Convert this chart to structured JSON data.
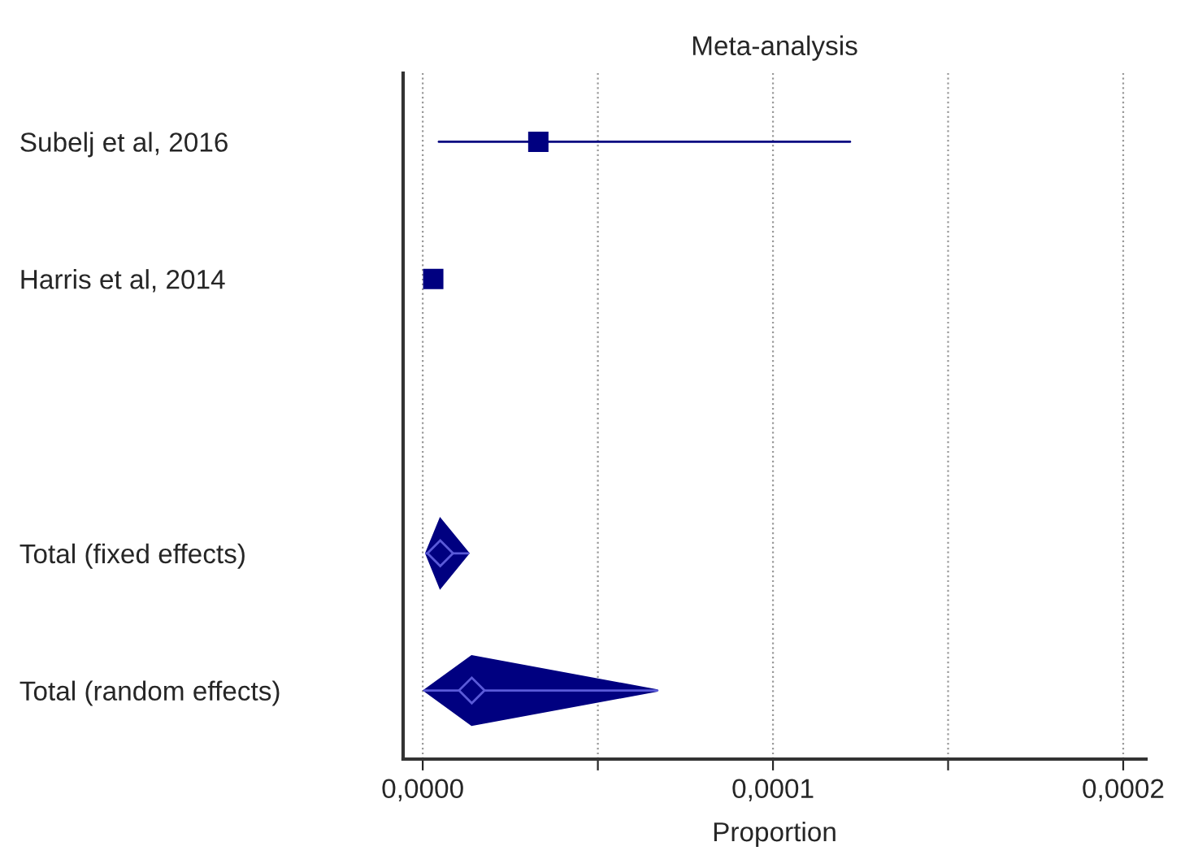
{
  "chart_data": {
    "type": "scatter",
    "orientation": "horizontal",
    "title": "Meta-analysis",
    "xlabel": "Proportion",
    "categories": [
      "Subelj et al, 2016",
      "Harris et al, 2014",
      null,
      "Total (fixed effects)",
      "Total (random effects)"
    ],
    "series": [
      {
        "marker": "square",
        "color": "#000080",
        "values": [
          3.3e-05,
          3e-06,
          null,
          null,
          null
        ],
        "errors": [
          [
            4.6e-06,
            0.000122
          ],
          null,
          null,
          null,
          null
        ]
      },
      {
        "marker": "diamond",
        "color": "#000080",
        "values": [
          null,
          null,
          null,
          5e-06,
          1.4e-05
        ],
        "errors": [
          null,
          null,
          null,
          [
            1e-06,
            1.3e-05
          ],
          [
            5e-07,
            6.7e-05
          ]
        ]
      }
    ],
    "xlim": [
      -5.6e-06,
      0.0002065
    ],
    "xticks": [
      {
        "value": 0,
        "label": "0,0000"
      },
      {
        "value": 5e-05,
        "label": null
      },
      {
        "value": 0.0001,
        "label": "0,0001"
      },
      {
        "value": 0.00015,
        "label": null
      },
      {
        "value": 0.0002,
        "label": "0,0002"
      }
    ],
    "grid": "x",
    "legend": false
  }
}
